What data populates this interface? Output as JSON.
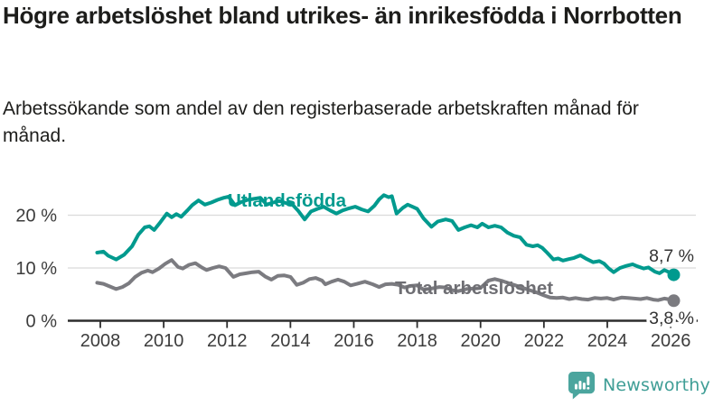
{
  "header": {
    "title": "Högre arbetslöshet bland utrikes- än inrikesfödda i Norrbotten",
    "subtitle": "Arbetssökande som andel av den registerbaserade arbetskraften månad för månad."
  },
  "footer": {
    "brand": "Newsworthy",
    "brand_color": "#3f9e96",
    "logo_color": "#4ba59e"
  },
  "chart_data": {
    "type": "line",
    "title": "Högre arbetslöshet bland utrikes- än inrikesfödda i Norrbotten",
    "unit": "%",
    "grid": true,
    "x_ticks": [
      2008,
      2010,
      2012,
      2014,
      2016,
      2018,
      2020,
      2022,
      2024,
      2026
    ],
    "y_ticks": [
      0,
      10,
      20
    ],
    "y_tick_labels": [
      "0 %",
      "10 %",
      "20 %"
    ],
    "xlim": [
      2007.8,
      2026.9
    ],
    "ylim": [
      0,
      26
    ],
    "axis_color": "#2d2d2d",
    "grid_color": "#dadada",
    "tick_text_color": "#3c3c3c",
    "end_label_color": "#333333",
    "series": [
      {
        "name": "Utlandsfödda",
        "color": "#009a8e",
        "label_color": "#009a8e",
        "end_value": 8.7,
        "end_label": "8,7 %",
        "points": [
          [
            2007.9,
            12.9
          ],
          [
            2008.1,
            13.1
          ],
          [
            2008.25,
            12.3
          ],
          [
            2008.5,
            11.6
          ],
          [
            2008.75,
            12.5
          ],
          [
            2009.0,
            14.1
          ],
          [
            2009.2,
            16.3
          ],
          [
            2009.4,
            17.7
          ],
          [
            2009.55,
            17.9
          ],
          [
            2009.7,
            17.2
          ],
          [
            2009.9,
            18.7
          ],
          [
            2010.1,
            20.3
          ],
          [
            2010.25,
            19.6
          ],
          [
            2010.4,
            20.2
          ],
          [
            2010.55,
            19.7
          ],
          [
            2010.75,
            20.9
          ],
          [
            2010.9,
            21.9
          ],
          [
            2011.1,
            22.8
          ],
          [
            2011.3,
            22.0
          ],
          [
            2011.5,
            22.4
          ],
          [
            2011.7,
            22.9
          ],
          [
            2011.9,
            23.3
          ],
          [
            2012.05,
            23.5
          ],
          [
            2012.25,
            21.9
          ],
          [
            2012.45,
            22.5
          ],
          [
            2012.65,
            22.9
          ],
          [
            2012.85,
            23.1
          ],
          [
            2013.05,
            23.3
          ],
          [
            2013.25,
            22.0
          ],
          [
            2013.45,
            22.4
          ],
          [
            2013.65,
            22.7
          ],
          [
            2013.85,
            22.3
          ],
          [
            2014.05,
            22.1
          ],
          [
            2014.25,
            20.8
          ],
          [
            2014.45,
            19.2
          ],
          [
            2014.65,
            20.7
          ],
          [
            2014.85,
            21.2
          ],
          [
            2015.05,
            21.6
          ],
          [
            2015.25,
            20.9
          ],
          [
            2015.45,
            20.3
          ],
          [
            2015.65,
            20.9
          ],
          [
            2015.85,
            21.3
          ],
          [
            2016.05,
            21.6
          ],
          [
            2016.25,
            21.1
          ],
          [
            2016.45,
            20.7
          ],
          [
            2016.65,
            21.8
          ],
          [
            2016.8,
            23.0
          ],
          [
            2016.95,
            23.8
          ],
          [
            2017.1,
            23.4
          ],
          [
            2017.2,
            23.6
          ],
          [
            2017.35,
            20.3
          ],
          [
            2017.55,
            21.4
          ],
          [
            2017.7,
            22.0
          ],
          [
            2017.85,
            21.6
          ],
          [
            2018.0,
            21.2
          ],
          [
            2018.2,
            19.4
          ],
          [
            2018.45,
            17.8
          ],
          [
            2018.65,
            18.8
          ],
          [
            2018.9,
            19.2
          ],
          [
            2019.1,
            18.9
          ],
          [
            2019.3,
            17.2
          ],
          [
            2019.5,
            17.7
          ],
          [
            2019.7,
            18.1
          ],
          [
            2019.9,
            17.7
          ],
          [
            2020.05,
            18.4
          ],
          [
            2020.25,
            17.7
          ],
          [
            2020.45,
            18.0
          ],
          [
            2020.65,
            17.7
          ],
          [
            2020.85,
            16.7
          ],
          [
            2021.05,
            16.1
          ],
          [
            2021.25,
            15.8
          ],
          [
            2021.45,
            14.4
          ],
          [
            2021.65,
            14.1
          ],
          [
            2021.8,
            14.3
          ],
          [
            2021.95,
            13.8
          ],
          [
            2022.1,
            12.9
          ],
          [
            2022.3,
            11.6
          ],
          [
            2022.45,
            11.8
          ],
          [
            2022.6,
            11.4
          ],
          [
            2022.8,
            11.7
          ],
          [
            2022.95,
            11.9
          ],
          [
            2023.15,
            12.4
          ],
          [
            2023.35,
            11.7
          ],
          [
            2023.55,
            11.1
          ],
          [
            2023.75,
            11.3
          ],
          [
            2023.9,
            10.8
          ],
          [
            2024.05,
            9.9
          ],
          [
            2024.2,
            9.2
          ],
          [
            2024.4,
            10.0
          ],
          [
            2024.6,
            10.4
          ],
          [
            2024.8,
            10.7
          ],
          [
            2024.95,
            10.3
          ],
          [
            2025.15,
            9.9
          ],
          [
            2025.3,
            10.1
          ],
          [
            2025.5,
            9.3
          ],
          [
            2025.65,
            9.0
          ],
          [
            2025.8,
            9.6
          ],
          [
            2025.95,
            9.2
          ],
          [
            2026.1,
            8.7
          ]
        ]
      },
      {
        "name": "Total arbetslöshet",
        "color": "#7b7b80",
        "label_color": "#6e6e73",
        "end_value": 3.8,
        "end_label": "3,8 %",
        "points": [
          [
            2007.9,
            7.2
          ],
          [
            2008.1,
            7.0
          ],
          [
            2008.3,
            6.5
          ],
          [
            2008.5,
            6.0
          ],
          [
            2008.7,
            6.4
          ],
          [
            2008.9,
            7.1
          ],
          [
            2009.1,
            8.3
          ],
          [
            2009.3,
            9.1
          ],
          [
            2009.5,
            9.5
          ],
          [
            2009.65,
            9.2
          ],
          [
            2009.85,
            9.9
          ],
          [
            2010.05,
            10.8
          ],
          [
            2010.25,
            11.5
          ],
          [
            2010.45,
            10.2
          ],
          [
            2010.6,
            9.9
          ],
          [
            2010.8,
            10.6
          ],
          [
            2011.0,
            10.9
          ],
          [
            2011.2,
            10.1
          ],
          [
            2011.35,
            9.6
          ],
          [
            2011.55,
            10.0
          ],
          [
            2011.75,
            10.3
          ],
          [
            2011.95,
            10.0
          ],
          [
            2012.2,
            8.3
          ],
          [
            2012.4,
            8.8
          ],
          [
            2012.6,
            9.0
          ],
          [
            2012.8,
            9.2
          ],
          [
            2013.0,
            9.3
          ],
          [
            2013.2,
            8.4
          ],
          [
            2013.4,
            7.8
          ],
          [
            2013.6,
            8.5
          ],
          [
            2013.8,
            8.6
          ],
          [
            2014.0,
            8.3
          ],
          [
            2014.2,
            6.8
          ],
          [
            2014.4,
            7.2
          ],
          [
            2014.6,
            7.9
          ],
          [
            2014.8,
            8.1
          ],
          [
            2015.0,
            7.6
          ],
          [
            2015.1,
            6.9
          ],
          [
            2015.3,
            7.4
          ],
          [
            2015.5,
            7.8
          ],
          [
            2015.7,
            7.4
          ],
          [
            2015.9,
            6.7
          ],
          [
            2016.1,
            7.0
          ],
          [
            2016.35,
            7.4
          ],
          [
            2016.6,
            6.9
          ],
          [
            2016.8,
            6.4
          ],
          [
            2017.0,
            6.9
          ],
          [
            2017.2,
            7.0
          ],
          [
            2017.4,
            6.8
          ],
          [
            2017.6,
            6.3
          ],
          [
            2017.8,
            6.6
          ],
          [
            2018.0,
            6.7
          ],
          [
            2018.2,
            5.9
          ],
          [
            2018.45,
            6.1
          ],
          [
            2018.7,
            6.4
          ],
          [
            2018.9,
            6.3
          ],
          [
            2019.1,
            5.8
          ],
          [
            2019.3,
            5.6
          ],
          [
            2019.55,
            6.0
          ],
          [
            2019.8,
            6.1
          ],
          [
            2020.0,
            6.2
          ],
          [
            2020.25,
            7.6
          ],
          [
            2020.45,
            7.9
          ],
          [
            2020.7,
            7.5
          ],
          [
            2020.9,
            7.1
          ],
          [
            2021.1,
            6.7
          ],
          [
            2021.3,
            6.3
          ],
          [
            2021.55,
            5.8
          ],
          [
            2021.8,
            5.3
          ],
          [
            2022.0,
            4.8
          ],
          [
            2022.2,
            4.4
          ],
          [
            2022.4,
            4.3
          ],
          [
            2022.6,
            4.4
          ],
          [
            2022.8,
            4.1
          ],
          [
            2023.0,
            4.3
          ],
          [
            2023.2,
            4.1
          ],
          [
            2023.4,
            4.0
          ],
          [
            2023.6,
            4.3
          ],
          [
            2023.8,
            4.2
          ],
          [
            2024.0,
            4.3
          ],
          [
            2024.2,
            4.0
          ],
          [
            2024.45,
            4.4
          ],
          [
            2024.65,
            4.3
          ],
          [
            2024.85,
            4.2
          ],
          [
            2025.05,
            4.1
          ],
          [
            2025.25,
            4.3
          ],
          [
            2025.45,
            4.0
          ],
          [
            2025.6,
            3.9
          ],
          [
            2025.8,
            4.2
          ],
          [
            2026.0,
            4.0
          ],
          [
            2026.1,
            3.8
          ]
        ]
      }
    ]
  }
}
